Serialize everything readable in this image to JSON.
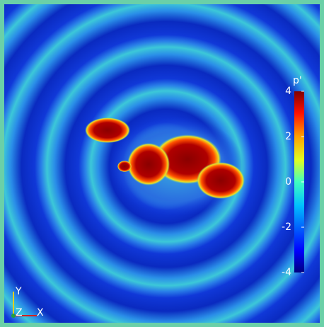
{
  "colorbar": {
    "title": "p'",
    "range": [
      -4,
      4
    ],
    "ticks": [
      4,
      2,
      0,
      -2,
      -4
    ]
  },
  "axes": {
    "y": "Y",
    "z": "Z",
    "x": "X"
  }
}
